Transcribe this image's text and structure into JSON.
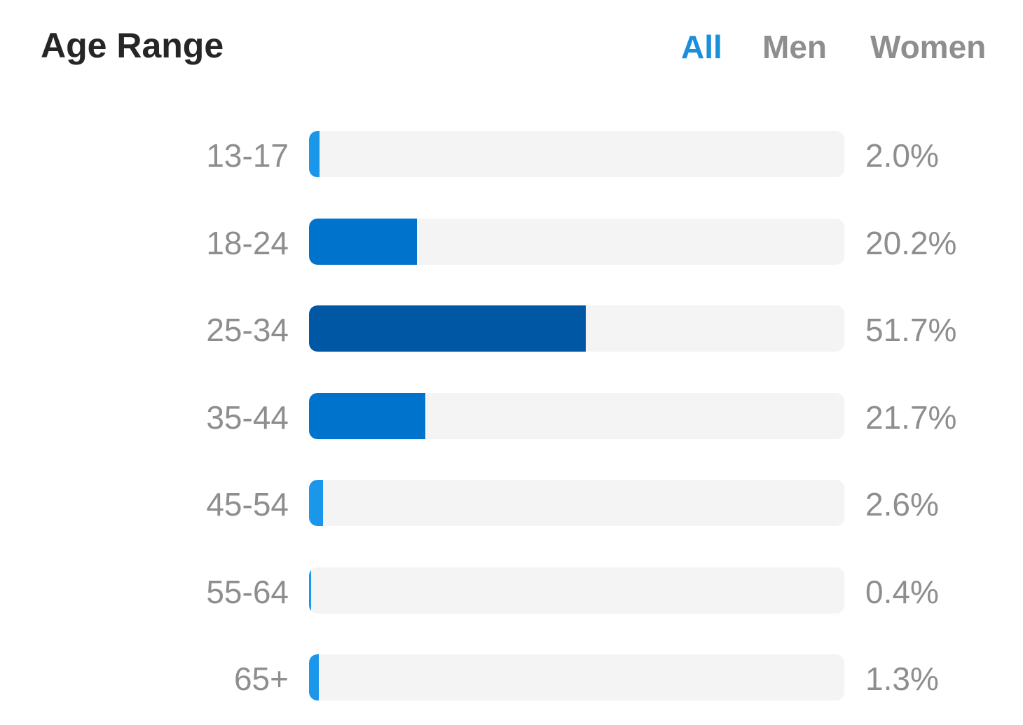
{
  "header": {
    "title": "Age Range"
  },
  "tabs": [
    {
      "label": "All",
      "active": true
    },
    {
      "label": "Men",
      "active": false
    },
    {
      "label": "Women",
      "active": false
    }
  ],
  "colors": {
    "accent": "#1a8fdc",
    "light": "#1a96ea",
    "mid": "#0074cc",
    "dark": "#0058a5",
    "track": "#f4f4f4"
  },
  "chart_data": {
    "type": "bar",
    "orientation": "horizontal",
    "title": "Age Range",
    "categories": [
      "13-17",
      "18-24",
      "25-34",
      "35-44",
      "45-54",
      "55-64",
      "65+"
    ],
    "values": [
      2.0,
      20.2,
      51.7,
      21.7,
      2.6,
      0.4,
      1.3
    ],
    "value_labels": [
      "2.0%",
      "20.2%",
      "51.7%",
      "21.7%",
      "2.6%",
      "0.4%",
      "1.3%"
    ],
    "bar_colors": [
      "#1a96ea",
      "#0074cc",
      "#0058a5",
      "#0074cc",
      "#1a96ea",
      "#1a96ea",
      "#1a96ea"
    ],
    "xlim": [
      0,
      100
    ],
    "unit": "%",
    "grid": false
  }
}
